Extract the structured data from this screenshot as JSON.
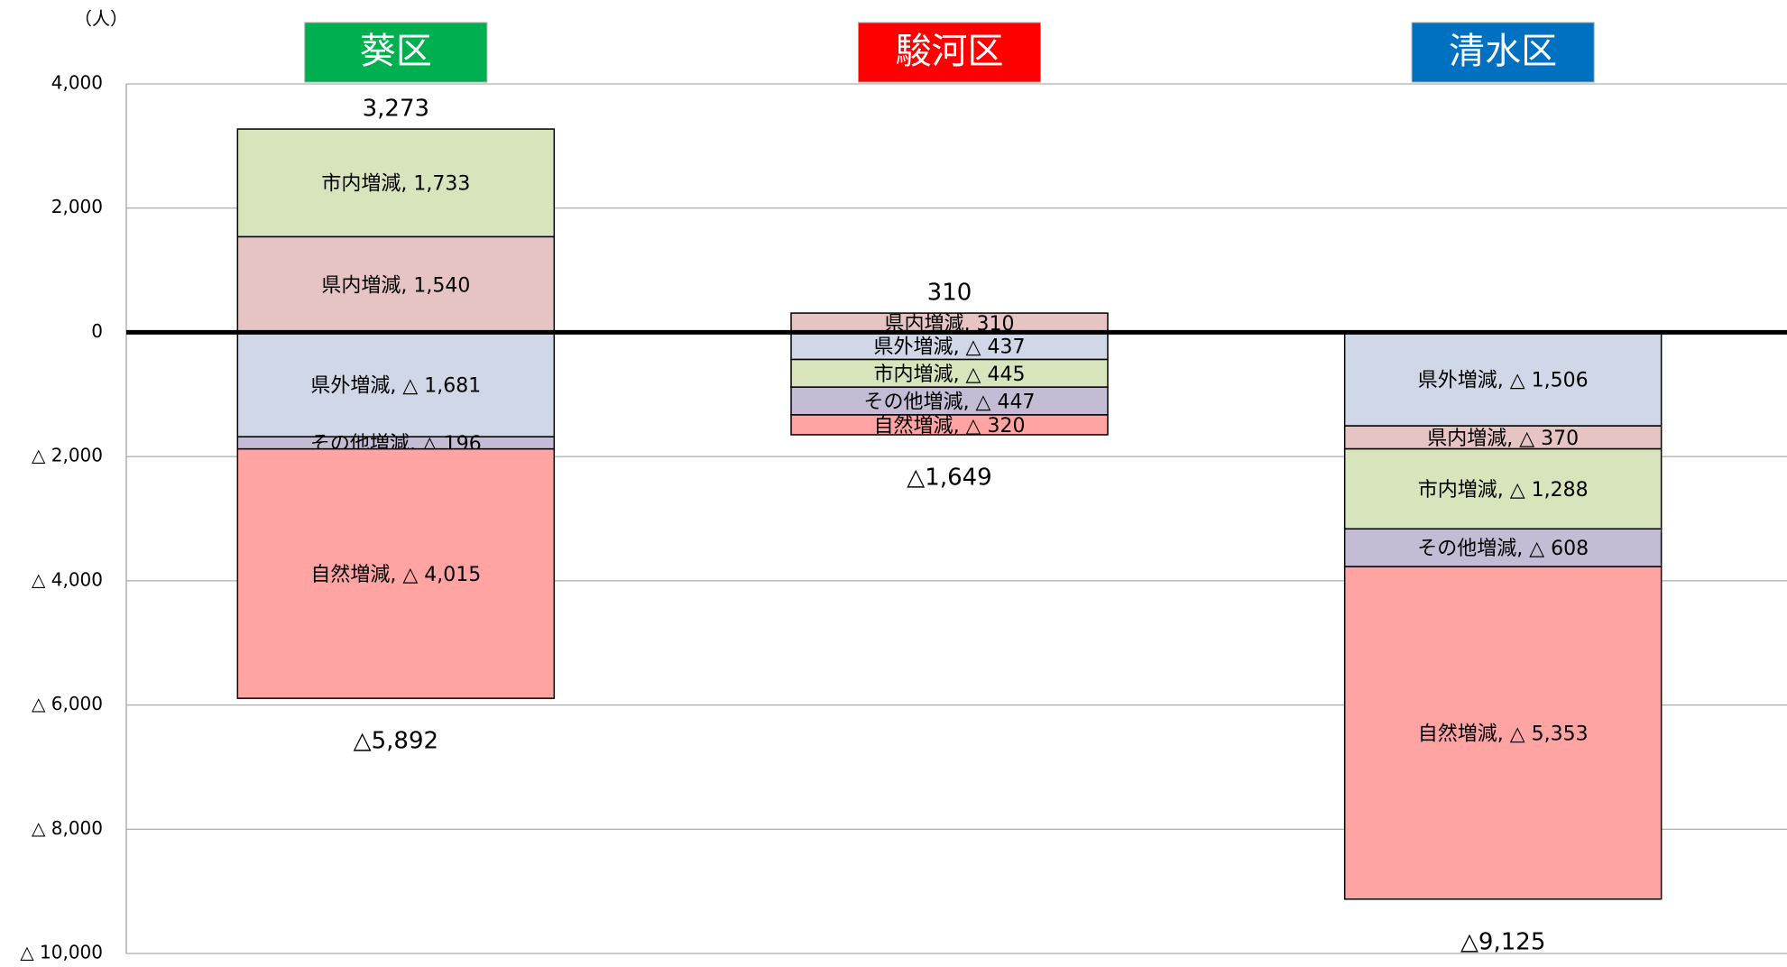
{
  "chart_data": {
    "type": "stacked_bar",
    "y_unit": "（人）",
    "ylim": [
      -10000,
      4000
    ],
    "yticks": [
      {
        "value": 4000,
        "label": "4,000"
      },
      {
        "value": 2000,
        "label": "2,000"
      },
      0,
      {
        "value": -2000,
        "label": "△ 2,000"
      },
      {
        "value": -4000,
        "label": "△ 4,000"
      },
      {
        "value": -6000,
        "label": "△ 6,000"
      },
      {
        "value": -8000,
        "label": "△ 8,000"
      },
      {
        "value": -10000,
        "label": "△ 10,000"
      }
    ],
    "grid": true,
    "categories": [
      "葵区",
      "駿河区",
      "清水区"
    ],
    "category_colors": [
      "#00b050",
      "#ff0000",
      "#0070c0"
    ],
    "stacks": [
      {
        "segments": [
          {
            "name": "県内増減",
            "value": 1540,
            "value_label": "1,540",
            "color": "#e6c4c4"
          },
          {
            "name": "市内増減",
            "value": 1733,
            "value_label": "1,733",
            "color": "#d8e4bc"
          },
          {
            "name": "県外増減",
            "value": -1681,
            "value_label": "△ 1,681",
            "color": "#d0d8e8"
          },
          {
            "name": "その他増減",
            "value": -196,
            "value_label": "△ 196",
            "color": "#c4bcd4"
          },
          {
            "name": "自然増減",
            "value": -4015,
            "value_label": "△ 4,015",
            "color": "#ffa3a3"
          }
        ],
        "top": 3273,
        "top_label": "3,273",
        "bottom": -5892,
        "bottom_label": "△5,892"
      },
      {
        "segments": [
          {
            "name": "県内増減",
            "value": 310,
            "value_label": "310",
            "color": "#e6c4c4"
          },
          {
            "name": "県外増減",
            "value": -437,
            "value_label": "△ 437",
            "color": "#d0d8e8"
          },
          {
            "name": "市内増減",
            "value": -445,
            "value_label": "△ 445",
            "color": "#d8e4bc"
          },
          {
            "name": "その他増減",
            "value": -447,
            "value_label": "△ 447",
            "color": "#c4bcd4"
          },
          {
            "name": "自然増減",
            "value": -320,
            "value_label": "△ 320",
            "color": "#ffa3a3"
          }
        ],
        "top": 310,
        "top_label": "310",
        "bottom": -1649,
        "bottom_label": "△1,649"
      },
      {
        "segments": [
          {
            "name": "県外増減",
            "value": -1506,
            "value_label": "△ 1,506",
            "color": "#d0d8e8"
          },
          {
            "name": "県内増減",
            "value": -370,
            "value_label": "△ 370",
            "color": "#e6c4c4"
          },
          {
            "name": "市内増減",
            "value": -1288,
            "value_label": "△ 1,288",
            "color": "#d8e4bc"
          },
          {
            "name": "その他増減",
            "value": -608,
            "value_label": "△ 608",
            "color": "#c4bcd4"
          },
          {
            "name": "自然増減",
            "value": -5353,
            "value_label": "△ 5,353",
            "color": "#ffa3a3"
          }
        ],
        "bottom": -9125,
        "bottom_label": "△9,125"
      }
    ]
  }
}
